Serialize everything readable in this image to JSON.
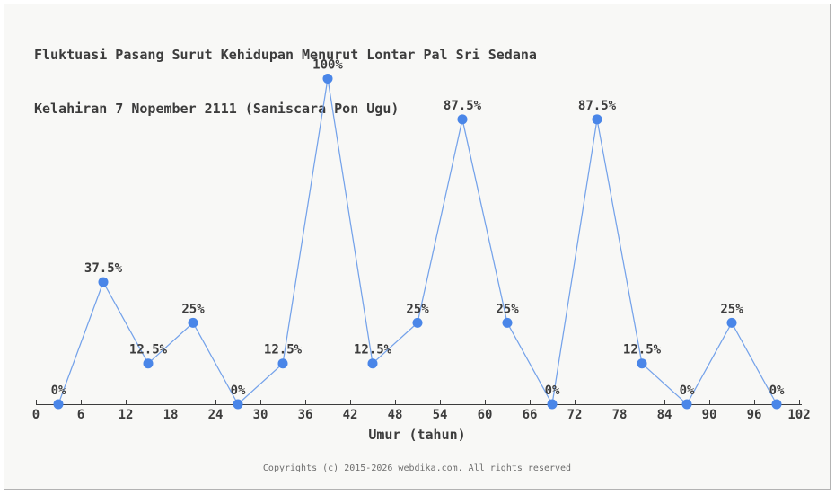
{
  "header": {
    "title_line1": "Fluktuasi Pasang Surut Kehidupan Menurut Lontar Pal Sri Sedana",
    "title_line2": "Kelahiran 7 Nopember 2111 (Saniscara Pon Ugu)"
  },
  "chart_data": {
    "type": "line",
    "title": "Fluktuasi Pasang Surut Kehidupan Menurut Lontar Pal Sri Sedana Kelahiran 7 Nopember 2111 (Saniscara Pon Ugu)",
    "xlabel": "Umur (tahun)",
    "ylabel": "",
    "xlim": [
      0,
      102
    ],
    "ylim": [
      0,
      100
    ],
    "grid": false,
    "legend": "none",
    "x": [
      3,
      9,
      15,
      21,
      27,
      33,
      39,
      45,
      51,
      57,
      63,
      69,
      75,
      81,
      87,
      93,
      99
    ],
    "values": [
      0,
      37.5,
      12.5,
      25,
      0,
      12.5,
      100,
      12.5,
      25,
      87.5,
      25,
      0,
      87.5,
      12.5,
      0,
      25,
      0
    ],
    "point_labels": [
      "0%",
      "37.5%",
      "12.5%",
      "25%",
      "0%",
      "12.5%",
      "100%",
      "12.5%",
      "25%",
      "87.5%",
      "25%",
      "0%",
      "87.5%",
      "12.5%",
      "0%",
      "25%",
      "0%"
    ],
    "x_ticks": [
      0,
      6,
      12,
      18,
      24,
      30,
      36,
      42,
      48,
      54,
      60,
      66,
      72,
      78,
      84,
      90,
      96,
      102
    ],
    "colors": {
      "marker": "#4a86e8",
      "line": "#74a2ea",
      "axis": "#3c3c3c",
      "text": "#3c3c3c",
      "footer_text": "#6e6e6e",
      "background": "#f8f8f6",
      "border": "#b3b3b3"
    }
  },
  "footer": {
    "copyright": "Copyrights (c) 2015-2026 webdika.com. All rights reserved"
  }
}
